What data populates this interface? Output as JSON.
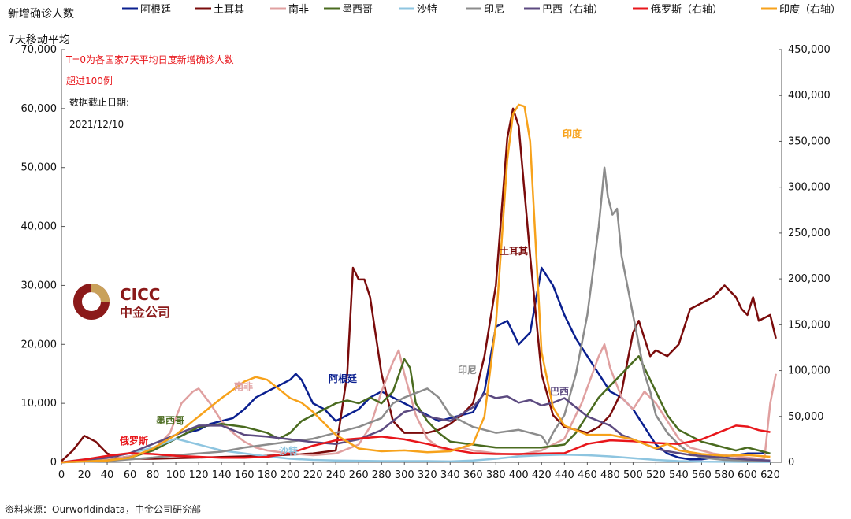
{
  "chart_data": {
    "type": "line",
    "ylabel_left": "新增确诊人数",
    "ylabel_left_sub": "7天移动平均",
    "xlim": [
      0,
      630
    ],
    "x_ticks": [
      0,
      20,
      40,
      60,
      80,
      100,
      120,
      140,
      160,
      180,
      200,
      220,
      240,
      260,
      280,
      300,
      320,
      340,
      360,
      380,
      400,
      420,
      440,
      460,
      480,
      500,
      520,
      540,
      560,
      580,
      600,
      620
    ],
    "ylim_left": [
      0,
      70000
    ],
    "y_ticks_left": [
      "0",
      "10,000",
      "20,000",
      "30,000",
      "40,000",
      "50,000",
      "60,000",
      "70,000"
    ],
    "ylim_right": [
      0,
      450000
    ],
    "y_ticks_right": [
      "0",
      "50,000",
      "100,000",
      "150,000",
      "200,000",
      "250,000",
      "300,000",
      "350,000",
      "400,000",
      "450,000"
    ],
    "annotation_lines": [
      "T=0为各国家7天平均日度新增确诊人数",
      "超过100例"
    ],
    "date_caption": "数据截止日期:",
    "date_value": "2021/12/10",
    "legend_position": "top",
    "grid": false,
    "series": [
      {
        "name": "阿根廷",
        "color": "#0a1f8f",
        "axis": "left",
        "x": [
          0,
          40,
          60,
          80,
          90,
          100,
          110,
          120,
          130,
          140,
          150,
          160,
          170,
          180,
          190,
          200,
          205,
          210,
          220,
          230,
          240,
          250,
          260,
          270,
          280,
          290,
          300,
          310,
          320,
          330,
          340,
          350,
          360,
          370,
          380,
          390,
          400,
          410,
          420,
          430,
          440,
          450,
          460,
          470,
          480,
          490,
          500,
          510,
          520,
          530,
          540,
          550,
          560,
          570,
          580,
          590,
          600,
          610,
          620
        ],
        "y": [
          0,
          500,
          1000,
          2000,
          3000,
          4000,
          5000,
          5500,
          6500,
          7000,
          7500,
          9000,
          11000,
          12000,
          13000,
          14000,
          15000,
          14000,
          10000,
          9000,
          7000,
          8000,
          9000,
          11000,
          12000,
          11000,
          10000,
          9000,
          8000,
          7000,
          7500,
          8000,
          8500,
          12000,
          23000,
          24000,
          20000,
          22000,
          33000,
          30000,
          25000,
          21000,
          18000,
          15000,
          12000,
          11000,
          9000,
          6000,
          3000,
          1500,
          800,
          500,
          500,
          800,
          1000,
          1200,
          1500,
          1500,
          1500
        ]
      },
      {
        "name": "土耳其",
        "color": "#7a0b0b",
        "axis": "left",
        "x": [
          0,
          10,
          20,
          30,
          40,
          50,
          60,
          80,
          100,
          120,
          140,
          160,
          180,
          200,
          220,
          240,
          250,
          255,
          260,
          265,
          270,
          280,
          290,
          300,
          310,
          320,
          330,
          340,
          350,
          360,
          370,
          380,
          390,
          395,
          400,
          410,
          420,
          430,
          440,
          450,
          460,
          470,
          480,
          490,
          500,
          505,
          510,
          515,
          520,
          530,
          540,
          550,
          560,
          570,
          580,
          590,
          595,
          600,
          605,
          610,
          620,
          625
        ],
        "y": [
          200,
          2000,
          4500,
          3500,
          1500,
          800,
          600,
          600,
          700,
          800,
          900,
          1000,
          1100,
          1300,
          1500,
          2000,
          15000,
          33000,
          31000,
          31000,
          28000,
          15000,
          7000,
          5000,
          5000,
          5000,
          5500,
          6500,
          8000,
          10000,
          18000,
          30000,
          55000,
          60000,
          57000,
          35000,
          15000,
          8000,
          6000,
          5500,
          5000,
          6000,
          8000,
          12000,
          22000,
          24000,
          21000,
          18000,
          19000,
          18000,
          20000,
          26000,
          27000,
          28000,
          30000,
          28000,
          26000,
          25000,
          28000,
          24000,
          25000,
          21000
        ]
      },
      {
        "name": "南非",
        "color": "#e0a0a0",
        "axis": "left",
        "x": [
          0,
          20,
          40,
          60,
          80,
          95,
          105,
          115,
          120,
          130,
          140,
          150,
          160,
          170,
          180,
          200,
          220,
          240,
          260,
          270,
          280,
          290,
          295,
          300,
          310,
          320,
          330,
          340,
          350,
          360,
          380,
          400,
          420,
          440,
          455,
          470,
          475,
          480,
          490,
          500,
          510,
          520,
          530,
          540,
          550,
          560,
          570,
          580,
          590,
          600,
          610,
          615,
          620,
          625
        ],
        "y": [
          0,
          200,
          500,
          1000,
          2000,
          5000,
          10000,
          12000,
          12500,
          10000,
          7000,
          5000,
          3500,
          2500,
          2000,
          1500,
          1200,
          1500,
          3000,
          6000,
          12000,
          17000,
          19000,
          15000,
          8000,
          4000,
          2500,
          2000,
          2500,
          2000,
          1500,
          1300,
          2000,
          4000,
          10000,
          18000,
          20000,
          16000,
          11000,
          9000,
          12000,
          10000,
          7000,
          4000,
          2500,
          2000,
          1500,
          1200,
          1000,
          800,
          600,
          700,
          10000,
          15000
        ]
      },
      {
        "name": "墨西哥",
        "color": "#4a6b1f",
        "axis": "left",
        "x": [
          0,
          40,
          60,
          80,
          100,
          120,
          140,
          160,
          170,
          180,
          190,
          200,
          210,
          220,
          240,
          250,
          260,
          270,
          280,
          290,
          300,
          305,
          310,
          320,
          330,
          340,
          360,
          380,
          400,
          420,
          440,
          450,
          460,
          470,
          480,
          490,
          500,
          505,
          510,
          520,
          530,
          540,
          550,
          560,
          570,
          580,
          590,
          600,
          610,
          620
        ],
        "y": [
          0,
          300,
          800,
          2000,
          4000,
          6000,
          6500,
          6000,
          5500,
          5000,
          4000,
          5000,
          7000,
          8000,
          10000,
          10500,
          10000,
          11000,
          10000,
          12000,
          17500,
          16000,
          10000,
          7000,
          5000,
          3500,
          3000,
          2500,
          2500,
          2500,
          3000,
          5000,
          8000,
          11000,
          13000,
          15000,
          17000,
          18000,
          16000,
          12000,
          8000,
          5500,
          4500,
          3500,
          3000,
          2500,
          2000,
          2500,
          2000,
          1500
        ]
      },
      {
        "name": "沙特",
        "color": "#8ec5e0",
        "axis": "left",
        "x": [
          0,
          40,
          60,
          80,
          100,
          120,
          140,
          160,
          180,
          190,
          200,
          220,
          240,
          260,
          280,
          300,
          320,
          340,
          360,
          380,
          400,
          420,
          440,
          460,
          480,
          500,
          520,
          540,
          560,
          580,
          600,
          620
        ],
        "y": [
          0,
          1000,
          1500,
          2500,
          4000,
          3000,
          2000,
          1500,
          1000,
          800,
          600,
          400,
          300,
          250,
          200,
          200,
          200,
          150,
          300,
          600,
          1000,
          1200,
          1300,
          1200,
          1000,
          700,
          400,
          200,
          100,
          80,
          60,
          60
        ]
      },
      {
        "name": "印尼",
        "color": "#8c8c8c",
        "axis": "left",
        "x": [
          0,
          40,
          80,
          100,
          120,
          140,
          160,
          180,
          200,
          220,
          240,
          260,
          280,
          290,
          300,
          320,
          330,
          340,
          360,
          380,
          400,
          410,
          420,
          425,
          430,
          440,
          450,
          460,
          470,
          475,
          478,
          482,
          486,
          490,
          500,
          505,
          510,
          515,
          520,
          530,
          540,
          550,
          560,
          580,
          600,
          620
        ],
        "y": [
          0,
          200,
          800,
          1200,
          1500,
          1800,
          2500,
          3000,
          3500,
          4000,
          5000,
          6000,
          7500,
          10000,
          11000,
          12500,
          11000,
          8000,
          6000,
          5000,
          5500,
          5000,
          4500,
          3000,
          5000,
          8000,
          15000,
          25000,
          40000,
          50000,
          45000,
          42000,
          43000,
          35000,
          25000,
          20000,
          15000,
          12000,
          8000,
          5000,
          3000,
          1500,
          800,
          400,
          300,
          200
        ]
      },
      {
        "name": "巴西",
        "color": "#5c4a80",
        "axis": "right",
        "x": [
          0,
          40,
          60,
          80,
          100,
          110,
          120,
          140,
          150,
          160,
          180,
          200,
          220,
          240,
          260,
          280,
          290,
          300,
          310,
          320,
          340,
          360,
          370,
          380,
          390,
          400,
          410,
          420,
          430,
          440,
          450,
          460,
          470,
          480,
          490,
          500,
          510,
          520,
          530,
          540,
          550,
          560,
          580,
          600,
          620
        ],
        "y": [
          0,
          5000,
          10000,
          20000,
          30000,
          35000,
          40000,
          40000,
          35000,
          30000,
          28000,
          25000,
          22000,
          20000,
          25000,
          35000,
          45000,
          55000,
          58000,
          50000,
          45000,
          60000,
          75000,
          70000,
          72000,
          65000,
          68000,
          62000,
          65000,
          70000,
          60000,
          50000,
          45000,
          40000,
          30000,
          25000,
          20000,
          15000,
          12000,
          10000,
          8000,
          7000,
          5000,
          3000,
          2000
        ]
      },
      {
        "name": "俄罗斯",
        "color": "#e8161b",
        "axis": "right",
        "x": [
          0,
          20,
          40,
          60,
          80,
          100,
          120,
          140,
          160,
          180,
          200,
          220,
          240,
          260,
          280,
          300,
          320,
          340,
          360,
          380,
          400,
          420,
          440,
          460,
          480,
          500,
          520,
          540,
          560,
          580,
          590,
          600,
          610,
          620
        ],
        "y": [
          0,
          3000,
          7000,
          10000,
          9000,
          7000,
          6000,
          5000,
          5000,
          6000,
          10000,
          18000,
          24000,
          26000,
          28000,
          25000,
          20000,
          14000,
          10000,
          9000,
          9000,
          9500,
          10000,
          20000,
          24000,
          23000,
          21000,
          20000,
          25000,
          35000,
          40000,
          39000,
          35000,
          33000
        ]
      },
      {
        "name": "印度",
        "color": "#f7a21b",
        "axis": "right",
        "x": [
          0,
          40,
          60,
          80,
          100,
          120,
          140,
          160,
          170,
          180,
          190,
          200,
          210,
          220,
          240,
          260,
          280,
          300,
          320,
          340,
          360,
          370,
          380,
          390,
          395,
          400,
          405,
          410,
          420,
          430,
          440,
          460,
          480,
          500,
          510,
          520,
          530,
          540,
          560,
          580,
          600,
          620
        ],
        "y": [
          0,
          2000,
          5000,
          15000,
          30000,
          50000,
          70000,
          88000,
          93000,
          90000,
          80000,
          70000,
          65000,
          55000,
          30000,
          15000,
          12000,
          13000,
          11000,
          12000,
          20000,
          50000,
          150000,
          330000,
          380000,
          390000,
          388000,
          350000,
          120000,
          60000,
          40000,
          30000,
          30000,
          25000,
          20000,
          15000,
          20000,
          13000,
          9000,
          7000,
          8000,
          6000
        ]
      }
    ],
    "inline_labels": [
      {
        "text": "印度",
        "color": "#f7a21b"
      },
      {
        "text": "土耳其",
        "color": "#7a0b0b"
      },
      {
        "text": "印尼",
        "color": "#8c8c8c"
      },
      {
        "text": "阿根廷",
        "color": "#0a1f8f"
      },
      {
        "text": "巴西",
        "color": "#5c4a80"
      },
      {
        "text": "南非",
        "color": "#e0a0a0"
      },
      {
        "text": "墨西哥",
        "color": "#4a6b1f"
      },
      {
        "text": "俄罗斯",
        "color": "#e8161b"
      },
      {
        "text": "沙特",
        "color": "#8ec5e0"
      }
    ],
    "legend_entries": [
      "阿根廷",
      "土耳其",
      "南非",
      "墨西哥",
      "沙特",
      "印尼",
      "巴西（右轴）",
      "俄罗斯（右轴）",
      "印度（右轴）"
    ]
  },
  "logo": {
    "text_en": "CICC",
    "text_cn": "中金公司"
  },
  "source_text": "资料来源：Ourworldindata，中金公司研究部"
}
